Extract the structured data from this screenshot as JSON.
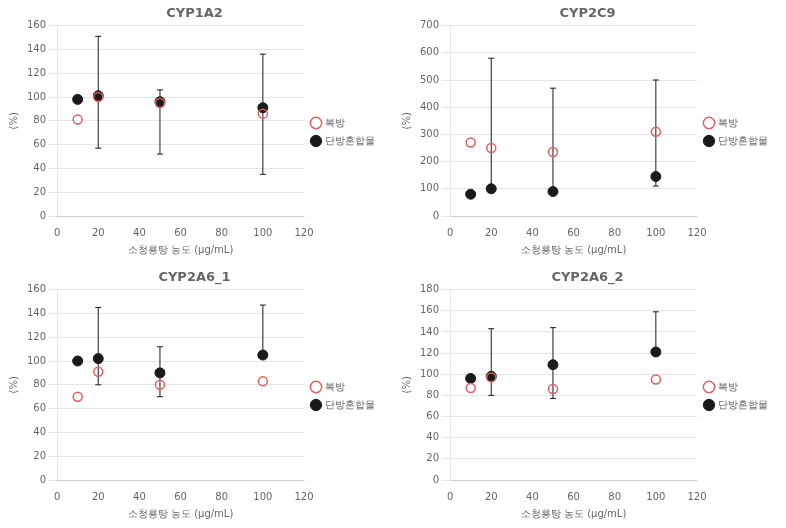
{
  "chart_data": [
    {
      "type": "scatter",
      "title": "CYP1A2",
      "x_label": "소청룡탕 농도 (μg/mL)",
      "y_label": "(%)",
      "xlim": [
        0,
        120
      ],
      "ylim": [
        0,
        160
      ],
      "xticks": [
        0,
        20,
        40,
        60,
        80,
        100,
        120
      ],
      "yticks": [
        0,
        20,
        40,
        60,
        80,
        100,
        120,
        140,
        160
      ],
      "grid": "y",
      "legend": "right",
      "x": [
        10,
        20,
        50,
        100
      ],
      "series": [
        {
          "name": "복방",
          "color": "#e06060",
          "marker": "open_circle",
          "values": [
            81,
            100,
            95,
            86
          ]
        },
        {
          "name": "단방혼합물",
          "color": "#1a1a1a",
          "marker": "circle",
          "values": [
            98,
            101,
            96,
            91
          ],
          "yerr_lo": [
            0,
            44,
            44,
            56
          ],
          "yerr_hi": [
            0,
            50,
            10,
            45
          ]
        }
      ]
    },
    {
      "type": "scatter",
      "title": "CYP2C9",
      "x_label": "소청룡탕 농도 (μg/mL)",
      "y_label": "(%)",
      "xlim": [
        0,
        120
      ],
      "ylim": [
        0,
        700
      ],
      "xticks": [
        0,
        20,
        40,
        60,
        80,
        100,
        120
      ],
      "yticks": [
        0,
        100,
        200,
        300,
        400,
        500,
        600,
        700
      ],
      "grid": "y",
      "legend": "right",
      "x": [
        10,
        20,
        50,
        100
      ],
      "series": [
        {
          "name": "복방",
          "color": "#e06060",
          "marker": "open_circle",
          "values": [
            270,
            250,
            235,
            310
          ]
        },
        {
          "name": "단방혼합물",
          "color": "#1a1a1a",
          "marker": "circle",
          "values": [
            80,
            100,
            90,
            145
          ],
          "yerr_lo": [
            0,
            0,
            0,
            35
          ],
          "yerr_hi": [
            0,
            480,
            380,
            355
          ]
        }
      ]
    },
    {
      "type": "scatter",
      "title": "CYP2A6_1",
      "x_label": "소청룡탕 농도 (μg/mL)",
      "y_label": "(%)",
      "xlim": [
        0,
        120
      ],
      "ylim": [
        0,
        160
      ],
      "xticks": [
        0,
        20,
        40,
        60,
        80,
        100,
        120
      ],
      "yticks": [
        0,
        20,
        40,
        60,
        80,
        100,
        120,
        140,
        160
      ],
      "grid": "y",
      "legend": "right",
      "x": [
        10,
        20,
        50,
        100
      ],
      "series": [
        {
          "name": "복방",
          "color": "#e06060",
          "marker": "open_circle",
          "values": [
            70,
            91,
            80,
            83
          ]
        },
        {
          "name": "단방혼합물",
          "color": "#1a1a1a",
          "marker": "circle",
          "values": [
            100,
            102,
            90,
            105
          ],
          "yerr_lo": [
            0,
            22,
            20,
            0
          ],
          "yerr_hi": [
            0,
            43,
            22,
            42
          ]
        }
      ]
    },
    {
      "type": "scatter",
      "title": "CYP2A6_2",
      "x_label": "소청룡탕 농도 (μg/mL)",
      "y_label": "(%)",
      "xlim": [
        0,
        120
      ],
      "ylim": [
        0,
        180
      ],
      "xticks": [
        0,
        20,
        40,
        60,
        80,
        100,
        120
      ],
      "yticks": [
        0,
        20,
        40,
        60,
        80,
        100,
        120,
        140,
        160,
        180
      ],
      "grid": "y",
      "legend": "right",
      "x": [
        10,
        20,
        50,
        100
      ],
      "series": [
        {
          "name": "복방",
          "color": "#e06060",
          "marker": "open_circle",
          "values": [
            87,
            97,
            86,
            95
          ]
        },
        {
          "name": "단방혼합물",
          "color": "#1a1a1a",
          "marker": "circle",
          "values": [
            96,
            98,
            109,
            121
          ],
          "yerr_lo": [
            0,
            18,
            32,
            0
          ],
          "yerr_hi": [
            0,
            45,
            35,
            38
          ]
        }
      ]
    }
  ]
}
